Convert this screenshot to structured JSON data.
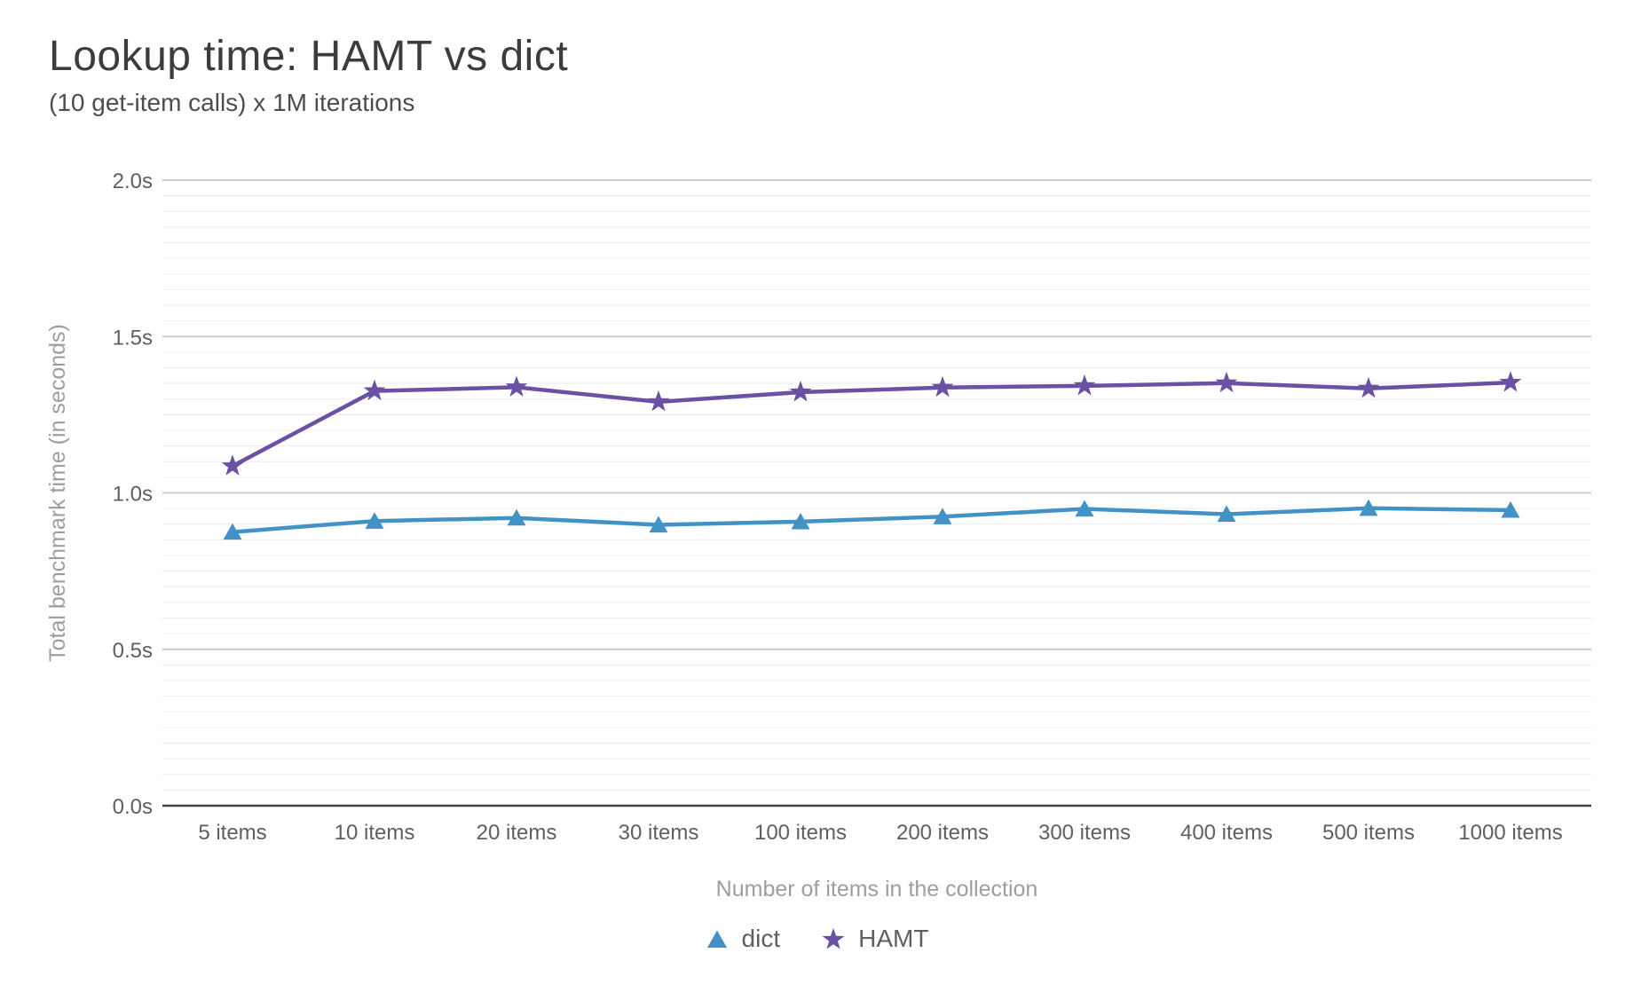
{
  "chart": {
    "title": "Lookup time: HAMT vs dict",
    "subtitle": "(10 get-item calls) x 1M iterations"
  },
  "chart_data": {
    "type": "line",
    "title": "Lookup time: HAMT vs dict",
    "subtitle": "(10 get-item calls) x 1M iterations",
    "xlabel": "Number of items in the collection",
    "ylabel": "Total benchmark time (in seconds)",
    "categories": [
      "5 items",
      "10 items",
      "20 items",
      "30 items",
      "100 items",
      "200 items",
      "300 items",
      "400 items",
      "500 items",
      "1000 items"
    ],
    "series": [
      {
        "name": "dict",
        "marker": "triangle",
        "color": "#4292c6",
        "values": [
          0.875,
          0.91,
          0.92,
          0.898,
          0.908,
          0.924,
          0.949,
          0.932,
          0.951,
          0.945
        ]
      },
      {
        "name": "HAMT",
        "marker": "star",
        "color": "#6a51a3",
        "values": [
          1.086,
          1.326,
          1.338,
          1.291,
          1.322,
          1.337,
          1.342,
          1.351,
          1.334,
          1.353
        ]
      }
    ],
    "y_axis": {
      "min": 0,
      "max": 2,
      "major_step": 0.5,
      "minor_step": 0.05,
      "major_tick_labels": [
        "0.0s",
        "0.5s",
        "1.0s",
        "1.5s",
        "2.0s"
      ]
    },
    "grid": true,
    "legend_position": "bottom",
    "colors": {
      "axis_line": "#424242",
      "major_grid": "#cccccc",
      "minor_grid": "#ededed",
      "tick_text": "#5f5f5f",
      "axis_title_text": "#9e9e9e"
    }
  }
}
